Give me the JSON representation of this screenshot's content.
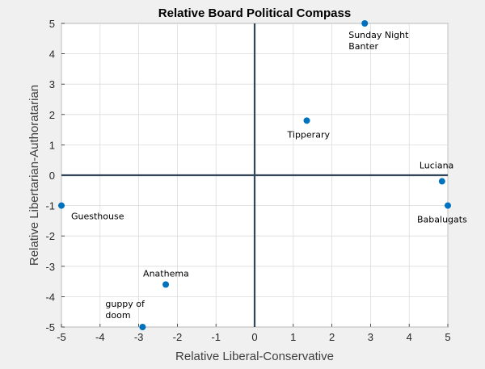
{
  "chart_data": {
    "type": "scatter",
    "title": "Relative Board Political Compass",
    "xlabel": "Relative Liberal-Conservative",
    "ylabel": "Relative Libertarian-Authoratarian",
    "xlim": [
      -5,
      5
    ],
    "ylim": [
      -5,
      5
    ],
    "xticks": [
      "-5",
      "-4",
      "-3",
      "-2",
      "-1",
      "0",
      "1",
      "2",
      "3",
      "4",
      "5"
    ],
    "yticks": [
      "-5",
      "-4",
      "-3",
      "-2",
      "-1",
      "0",
      "1",
      "2",
      "3",
      "4",
      "5"
    ],
    "grid": true,
    "marker_color": "#0072bd",
    "axis_line_color": "#34465a",
    "points": [
      {
        "x": 2.85,
        "y": 5.0,
        "label": "Sunday Night Banter",
        "label_lines": [
          "Sunday Night",
          "Banter"
        ]
      },
      {
        "x": 1.35,
        "y": 1.8,
        "label": "Tipperary",
        "label_lines": [
          "Tipperary"
        ]
      },
      {
        "x": 4.85,
        "y": -0.2,
        "label": "Luciana",
        "label_lines": [
          "Luciana"
        ]
      },
      {
        "x": 5.0,
        "y": -1.0,
        "label": "Babalugats",
        "label_lines": [
          "Babalugats"
        ]
      },
      {
        "x": -5.0,
        "y": -1.0,
        "label": "Guesthouse",
        "label_lines": [
          "Guesthouse"
        ]
      },
      {
        "x": -2.3,
        "y": -3.6,
        "label": "Anathema",
        "label_lines": [
          "Anathema"
        ]
      },
      {
        "x": -2.9,
        "y": -5.0,
        "label": "guppy of doom",
        "label_lines": [
          "guppy of",
          "doom"
        ]
      }
    ]
  }
}
